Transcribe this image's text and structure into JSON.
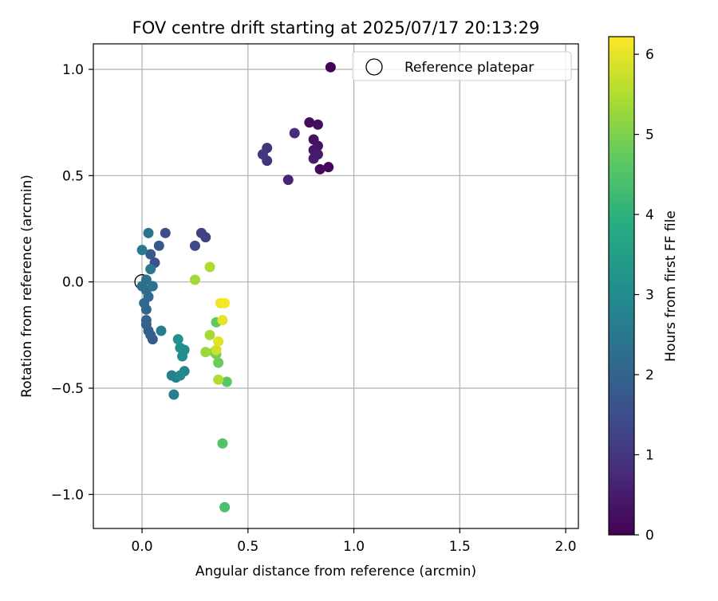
{
  "chart_data": {
    "type": "scatter",
    "title": "FOV centre drift starting at 2025/07/17 20:13:29",
    "xlabel": "Angular distance from reference (arcmin)",
    "ylabel": "Rotation from reference (arcmin)",
    "xlim": [
      -0.23,
      2.06
    ],
    "ylim": [
      -1.16,
      1.12
    ],
    "xticks": [
      0.0,
      0.5,
      1.0,
      1.5,
      2.0
    ],
    "xtick_labels": [
      "0.0",
      "0.5",
      "1.0",
      "1.5",
      "2.0"
    ],
    "yticks": [
      -1.0,
      -0.5,
      0.0,
      0.5,
      1.0
    ],
    "ytick_labels": [
      "−1.0",
      "−0.5",
      "0.0",
      "0.5",
      "1.0"
    ],
    "grid": true,
    "legend": {
      "placement": "top-right",
      "entries": [
        {
          "label": "Reference platepar",
          "marker": "open-circle",
          "x": 0.0,
          "y": 0.0
        }
      ]
    },
    "colormap": "viridis",
    "colorbar": {
      "label": "Hours from first FF file",
      "range": [
        0,
        6.22
      ],
      "ticks": [
        0,
        1,
        2,
        3,
        4,
        5,
        6
      ],
      "tick_labels": [
        "0",
        "1",
        "2",
        "3",
        "4",
        "5",
        "6"
      ]
    },
    "points": [
      {
        "x": 0.89,
        "y": 1.01,
        "c": 0.05
      },
      {
        "x": 0.88,
        "y": 0.54,
        "c": 0.1
      },
      {
        "x": 0.84,
        "y": 0.53,
        "c": 0.15
      },
      {
        "x": 0.79,
        "y": 0.75,
        "c": 0.2
      },
      {
        "x": 0.83,
        "y": 0.74,
        "c": 0.25
      },
      {
        "x": 0.81,
        "y": 0.67,
        "c": 0.3
      },
      {
        "x": 0.83,
        "y": 0.64,
        "c": 0.35
      },
      {
        "x": 0.81,
        "y": 0.62,
        "c": 0.4
      },
      {
        "x": 0.83,
        "y": 0.6,
        "c": 0.45
      },
      {
        "x": 0.81,
        "y": 0.58,
        "c": 0.5
      },
      {
        "x": 0.69,
        "y": 0.48,
        "c": 0.65
      },
      {
        "x": 0.72,
        "y": 0.7,
        "c": 0.8
      },
      {
        "x": 0.59,
        "y": 0.63,
        "c": 0.9
      },
      {
        "x": 0.59,
        "y": 0.57,
        "c": 0.95
      },
      {
        "x": 0.57,
        "y": 0.6,
        "c": 1.05
      },
      {
        "x": 0.28,
        "y": 0.23,
        "c": 1.2
      },
      {
        "x": 0.3,
        "y": 0.21,
        "c": 1.25
      },
      {
        "x": 0.25,
        "y": 0.17,
        "c": 1.35
      },
      {
        "x": 0.11,
        "y": 0.23,
        "c": 1.5
      },
      {
        "x": 0.06,
        "y": 0.09,
        "c": 1.55
      },
      {
        "x": 0.08,
        "y": 0.17,
        "c": 1.7
      },
      {
        "x": 0.04,
        "y": 0.13,
        "c": 1.75
      },
      {
        "x": 0.05,
        "y": -0.27,
        "c": 1.8
      },
      {
        "x": 0.04,
        "y": -0.25,
        "c": 1.85
      },
      {
        "x": 0.03,
        "y": -0.23,
        "c": 1.9
      },
      {
        "x": 0.02,
        "y": -0.2,
        "c": 1.95
      },
      {
        "x": 0.02,
        "y": -0.18,
        "c": 2.0
      },
      {
        "x": 0.02,
        "y": -0.13,
        "c": 2.05
      },
      {
        "x": 0.01,
        "y": -0.1,
        "c": 2.1
      },
      {
        "x": 0.03,
        "y": -0.07,
        "c": 2.15
      },
      {
        "x": 0.02,
        "y": -0.04,
        "c": 2.2
      },
      {
        "x": 0.0,
        "y": -0.02,
        "c": 2.25
      },
      {
        "x": 0.02,
        "y": 0.01,
        "c": 2.3
      },
      {
        "x": 0.05,
        "y": -0.02,
        "c": 2.35
      },
      {
        "x": 0.03,
        "y": 0.23,
        "c": 2.4
      },
      {
        "x": 0.04,
        "y": 0.06,
        "c": 2.5
      },
      {
        "x": 0.0,
        "y": 0.15,
        "c": 2.55
      },
      {
        "x": 0.09,
        "y": -0.23,
        "c": 2.6
      },
      {
        "x": 0.15,
        "y": -0.53,
        "c": 2.65
      },
      {
        "x": 0.14,
        "y": -0.44,
        "c": 2.7
      },
      {
        "x": 0.16,
        "y": -0.45,
        "c": 2.75
      },
      {
        "x": 0.2,
        "y": -0.42,
        "c": 2.85
      },
      {
        "x": 0.18,
        "y": -0.44,
        "c": 2.9
      },
      {
        "x": 0.19,
        "y": -0.35,
        "c": 3.0
      },
      {
        "x": 0.2,
        "y": -0.32,
        "c": 3.05
      },
      {
        "x": 0.18,
        "y": -0.31,
        "c": 3.1
      },
      {
        "x": 0.17,
        "y": -0.27,
        "c": 3.15
      },
      {
        "x": 0.39,
        "y": -1.06,
        "c": 4.4
      },
      {
        "x": 0.38,
        "y": -0.76,
        "c": 4.5
      },
      {
        "x": 0.4,
        "y": -0.47,
        "c": 4.6
      },
      {
        "x": 0.35,
        "y": -0.19,
        "c": 4.7
      },
      {
        "x": 0.36,
        "y": -0.38,
        "c": 4.8
      },
      {
        "x": 0.35,
        "y": -0.34,
        "c": 4.9
      },
      {
        "x": 0.34,
        "y": -0.33,
        "c": 5.0
      },
      {
        "x": 0.3,
        "y": -0.33,
        "c": 5.3
      },
      {
        "x": 0.32,
        "y": -0.25,
        "c": 5.4
      },
      {
        "x": 0.36,
        "y": -0.46,
        "c": 5.5
      },
      {
        "x": 0.32,
        "y": 0.07,
        "c": 5.45
      },
      {
        "x": 0.25,
        "y": 0.01,
        "c": 5.35
      },
      {
        "x": 0.35,
        "y": -0.32,
        "c": 5.8
      },
      {
        "x": 0.36,
        "y": -0.28,
        "c": 5.95
      },
      {
        "x": 0.38,
        "y": -0.18,
        "c": 6.0
      },
      {
        "x": 0.37,
        "y": -0.1,
        "c": 6.1
      },
      {
        "x": 0.39,
        "y": -0.1,
        "c": 6.15
      }
    ]
  }
}
